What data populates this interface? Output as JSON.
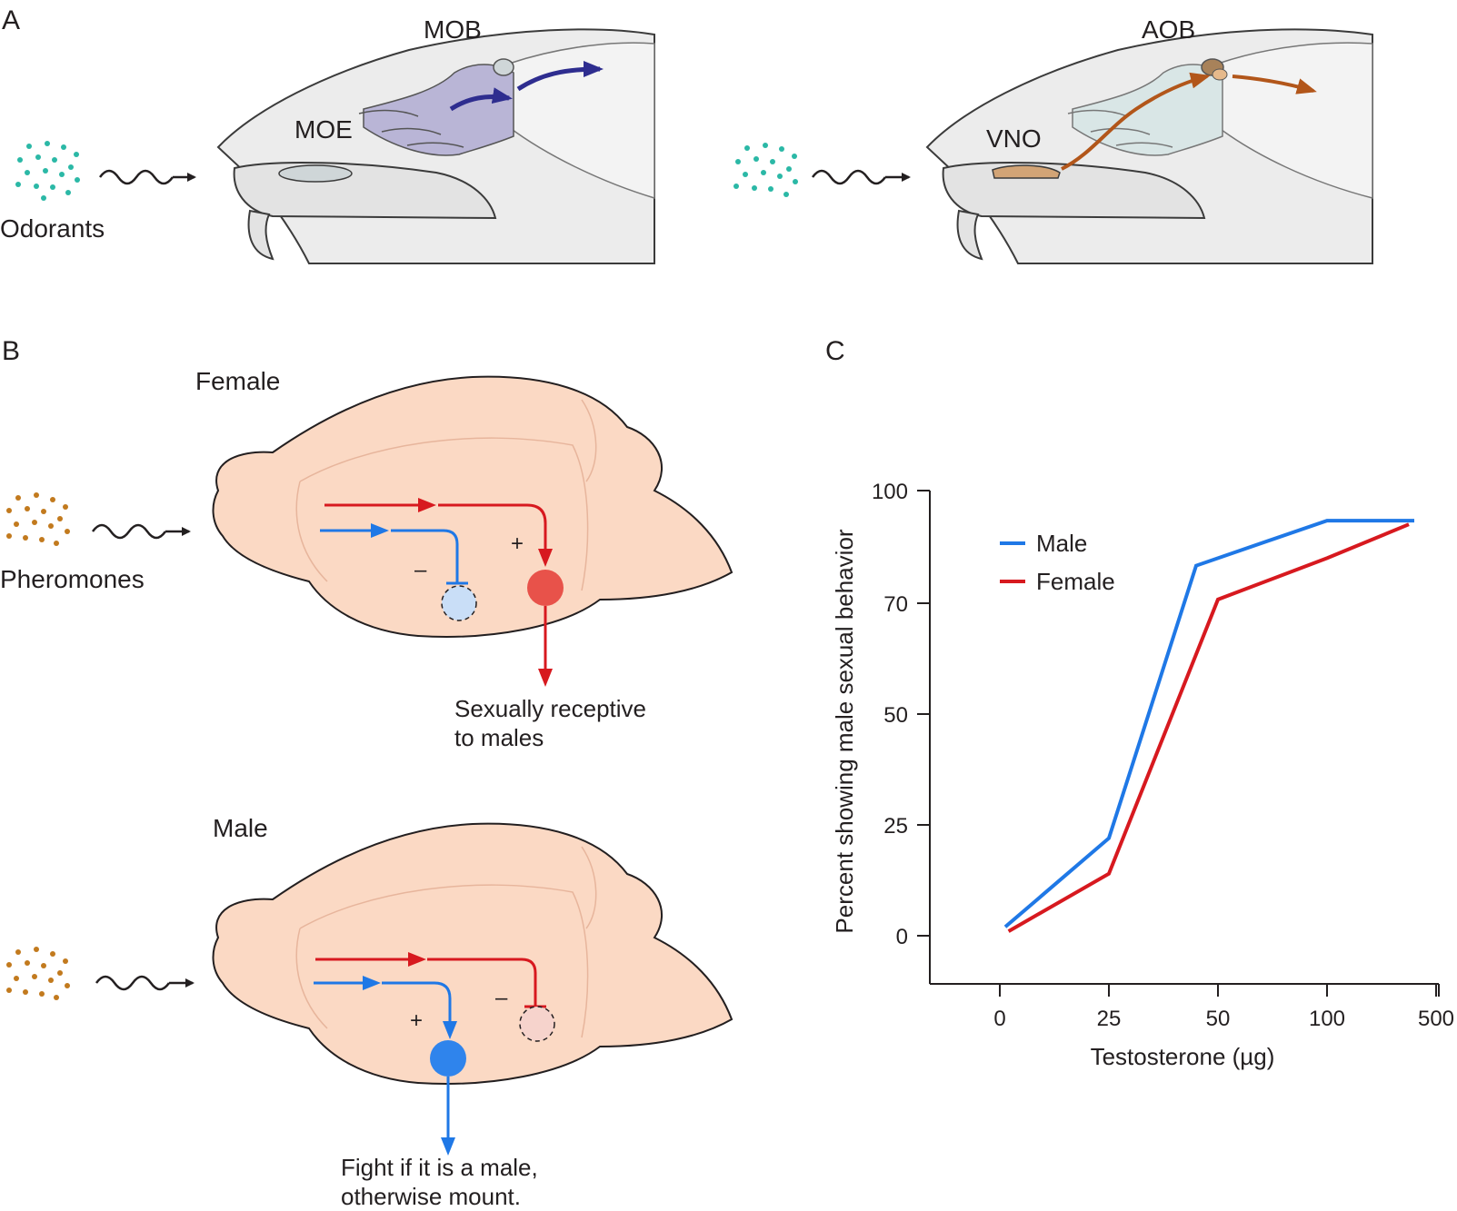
{
  "panel_a": {
    "letter": "A",
    "main_olfactory": {
      "mob_label": "MOB",
      "moe_label": "MOE",
      "stimulus_label": "Odorants",
      "stimulus_color": "#2bb8a6",
      "pathway_color": "#2e2d8f",
      "region_fill": "#b9b5d6"
    },
    "accessory_olfactory": {
      "aob_label": "AOB",
      "vno_label": "VNO",
      "stimulus_color": "#2bb8a6",
      "pathway_color": "#b2561a",
      "organ_fill": "#d2a476"
    }
  },
  "panel_b": {
    "letter": "B",
    "stimulus_label": "Pheromones",
    "stimulus_color": "#c27a1e",
    "female": {
      "title": "Female",
      "plus": "+",
      "minus": "–",
      "outcome_line1": "Sexually receptive",
      "outcome_line2": "to males"
    },
    "male": {
      "title": "Male",
      "plus": "+",
      "minus": "–",
      "outcome_line1": "Fight if it is a male,",
      "outcome_line2": "otherwise mount."
    },
    "colors": {
      "female_pathway": "#d7191f",
      "male_pathway": "#1f78e6",
      "brain_fill": "#fbd9c4"
    }
  },
  "panel_c": {
    "letter": "C",
    "chart_data": {
      "type": "line",
      "xlabel": "Testosterone (µg)",
      "ylabel": "Percent showing male sexual behavior",
      "x_categories": [
        "0",
        "25",
        "50",
        "100",
        "500"
      ],
      "y_ticks": [
        0,
        25,
        50,
        70,
        100
      ],
      "ylim": [
        -10,
        100
      ],
      "legend_position": "top-left",
      "series": [
        {
          "name": "Male",
          "color": "#1f78e6",
          "points": [
            [
              0.05,
              2
            ],
            [
              1.0,
              22
            ],
            [
              1.8,
              80
            ],
            [
              3.0,
              92
            ],
            [
              3.8,
              92
            ]
          ]
        },
        {
          "name": "Female",
          "color": "#d7191f",
          "points": [
            [
              0.08,
              1
            ],
            [
              1.0,
              14
            ],
            [
              2.0,
              71
            ],
            [
              3.0,
              82
            ],
            [
              3.75,
              91
            ]
          ]
        }
      ]
    }
  }
}
